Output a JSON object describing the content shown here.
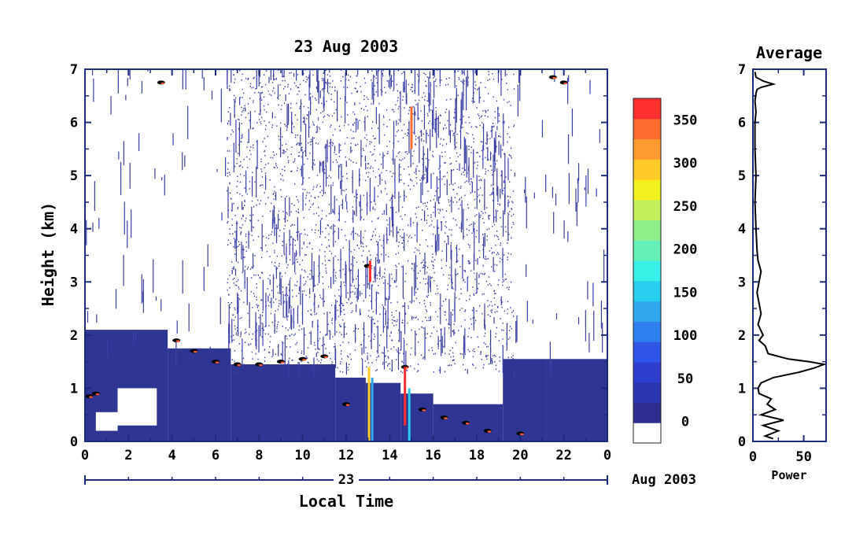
{
  "chart_data": [
    {
      "type": "heatmap",
      "title": "23 Aug 2003",
      "xlabel": "Local Time",
      "ylabel": "Height (km)",
      "x_ticks": [
        "0",
        "2",
        "4",
        "6",
        "8",
        "10",
        "12",
        "14",
        "16",
        "18",
        "20",
        "22",
        "0"
      ],
      "y_ticks": [
        "0",
        "1",
        "2",
        "3",
        "4",
        "5",
        "6",
        "7"
      ],
      "xlim_hours": [
        0,
        24
      ],
      "ylim": [
        0,
        7
      ],
      "date_bar": {
        "day": "23",
        "month_year": "Aug 2003"
      },
      "colorbar": {
        "ticks": [
          "0",
          "50",
          "100",
          "150",
          "200",
          "250",
          "300",
          "350"
        ],
        "range": [
          -25,
          375
        ],
        "colors": [
          "#ffffff",
          "#2b2d8f",
          "#2a35b0",
          "#2d3fd0",
          "#2f55e8",
          "#2f7ff0",
          "#2fa8ee",
          "#29cdee",
          "#39f0e8",
          "#64f0b6",
          "#8eef8a",
          "#c2f05a",
          "#f3f21e",
          "#ffca28",
          "#ff9a2e",
          "#ff6a2e",
          "#ff2e2e"
        ]
      },
      "boundary_layer_top_km": [
        {
          "h": 0.2,
          "v": 0.85
        },
        {
          "h": 0.5,
          "v": 0.9
        },
        {
          "h": 3.5,
          "v": 6.75
        },
        {
          "h": 4.2,
          "v": 1.9
        },
        {
          "h": 5.0,
          "v": 1.7
        },
        {
          "h": 6.0,
          "v": 1.5
        },
        {
          "h": 7.0,
          "v": 1.45
        },
        {
          "h": 8.0,
          "v": 1.45
        },
        {
          "h": 9.0,
          "v": 1.5
        },
        {
          "h": 10.0,
          "v": 1.55
        },
        {
          "h": 11.0,
          "v": 1.6
        },
        {
          "h": 12.0,
          "v": 0.7
        },
        {
          "h": 13.0,
          "v": 3.3
        },
        {
          "h": 14.7,
          "v": 1.4
        },
        {
          "h": 15.5,
          "v": 0.6
        },
        {
          "h": 16.5,
          "v": 0.45
        },
        {
          "h": 17.5,
          "v": 0.35
        },
        {
          "h": 18.5,
          "v": 0.2
        },
        {
          "h": 20.0,
          "v": 0.15
        },
        {
          "h": 21.5,
          "v": 6.85
        },
        {
          "h": 22.0,
          "v": 6.75
        }
      ]
    },
    {
      "type": "line",
      "title": "Average",
      "xlabel": "Power",
      "ylabel": "",
      "x_ticks": [
        "0",
        "50"
      ],
      "y_ticks": [
        "0",
        "1",
        "2",
        "3",
        "4",
        "5",
        "6",
        "7"
      ],
      "xlim": [
        0,
        72
      ],
      "ylim": [
        0,
        7
      ],
      "x": [
        20,
        12,
        25,
        10,
        30,
        8,
        22,
        14,
        18,
        6,
        5,
        8,
        20,
        45,
        60,
        70,
        55,
        35,
        15,
        12,
        6,
        10,
        5,
        8,
        6,
        4,
        6,
        8,
        5,
        4,
        3,
        2,
        3,
        2,
        2,
        3,
        2,
        3,
        4,
        8,
        20,
        10,
        3,
        2
      ],
      "y": [
        0.05,
        0.1,
        0.2,
        0.3,
        0.4,
        0.5,
        0.6,
        0.7,
        0.8,
        0.9,
        1.0,
        1.1,
        1.2,
        1.3,
        1.38,
        1.45,
        1.5,
        1.55,
        1.65,
        1.8,
        1.9,
        2.0,
        2.2,
        2.4,
        2.6,
        2.8,
        3.0,
        3.2,
        3.4,
        3.6,
        4.0,
        4.5,
        5.0,
        5.5,
        6.0,
        6.2,
        6.4,
        6.55,
        6.62,
        6.66,
        6.72,
        6.78,
        6.85,
        6.95
      ]
    }
  ]
}
